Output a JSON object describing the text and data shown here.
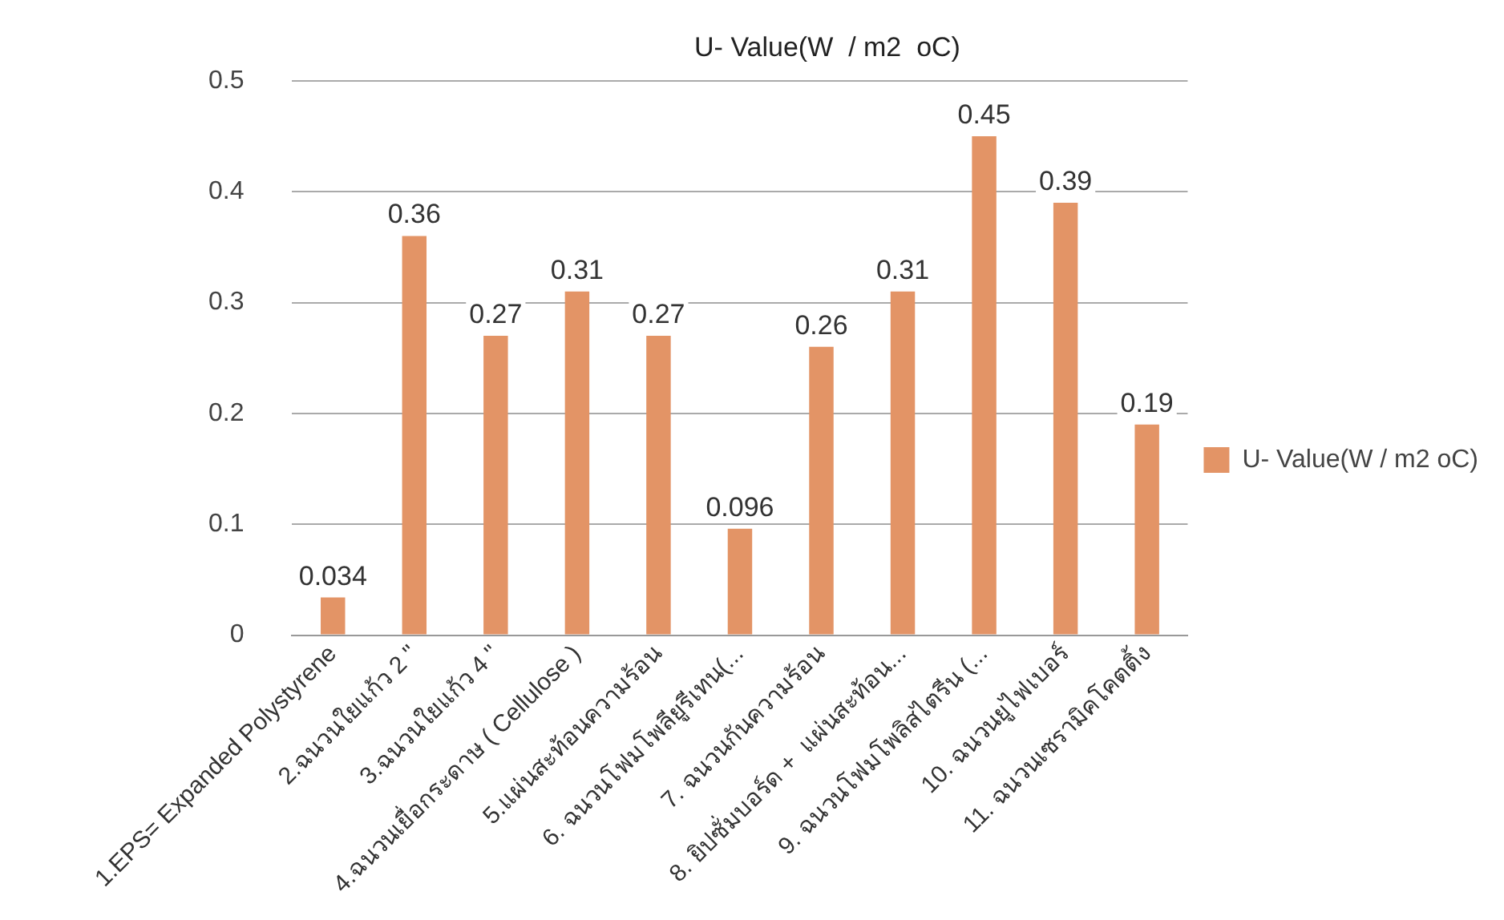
{
  "chart_data": {
    "type": "bar",
    "title": "U- Value(W  / m2  oC)",
    "categories": [
      "1.EPS= Expanded Polystyrene",
      "2.ฉนวนใยแก้ว 2 \"",
      "3.ฉนวนใยแก้ว 4 \"",
      "4.ฉนวนเยื่อกระดาษ ( Cellulose )",
      "5.แผ่นสะท้อนความร้อน",
      "6. ฉนวนโฟมโพลียูรีเทน(...",
      "7. ฉนวนกันความร้อน",
      "8. ยิปซั่มบอร์ด +  แผ่นสะท้อน...",
      "9. ฉนวนโฟมโพลิสไตรีน (...",
      "10. ฉนวนยูไฟเบอร์",
      "11. ฉนวนเซรามิคโคตติ้ง"
    ],
    "series": [
      {
        "name": "U- Value(W / m2 oC)",
        "color": "#e39466",
        "values": [
          0.034,
          0.36,
          0.27,
          0.31,
          0.27,
          0.096,
          0.26,
          0.31,
          0.45,
          0.39,
          0.19
        ]
      }
    ],
    "ylim": [
      0,
      0.5
    ],
    "yticks": [
      0,
      0.1,
      0.2,
      0.3,
      0.4,
      0.5
    ],
    "grid": "y",
    "legend": "right",
    "data_labels": true
  }
}
